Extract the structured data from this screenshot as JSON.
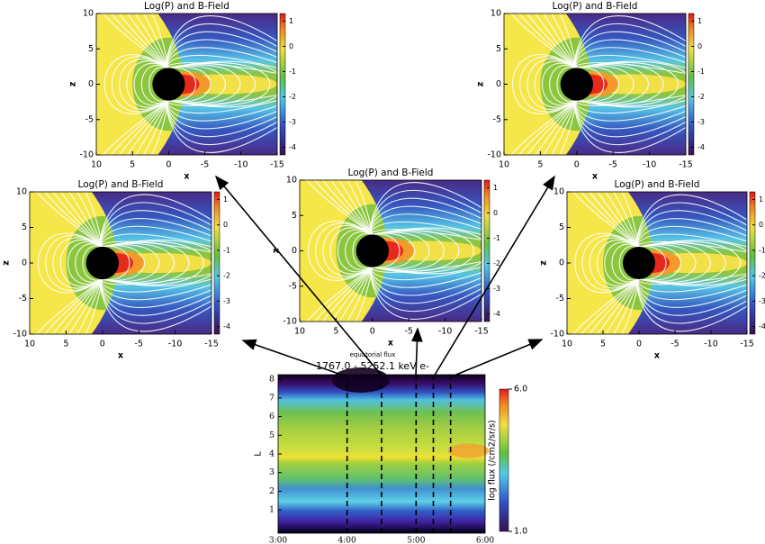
{
  "chart_data": [
    {
      "type": "field",
      "title": "Log(P) and B-Field",
      "xlabel": "x",
      "ylabel": "z",
      "xlim": [
        10,
        -15
      ],
      "ylim": [
        -10,
        10
      ],
      "xticks": [
        10,
        5,
        0,
        -5,
        -10,
        -15
      ],
      "yticks": [
        -10,
        -5,
        0,
        5,
        10
      ],
      "colorbar": {
        "lim": [
          -4.3,
          1.3
        ],
        "ticks": [
          -4,
          -3,
          -2,
          -1,
          0,
          1
        ]
      }
    },
    {
      "type": "field",
      "title": "Log(P) and B-Field",
      "xlabel": "x",
      "ylabel": "z",
      "xlim": [
        10,
        -15
      ],
      "ylim": [
        -10,
        10
      ],
      "xticks": [
        10,
        5,
        0,
        -5,
        -10,
        -15
      ],
      "yticks": [
        -10,
        -5,
        0,
        5,
        10
      ],
      "colorbar": {
        "lim": [
          -4.3,
          1.3
        ],
        "ticks": [
          -4,
          -3,
          -2,
          -1,
          0,
          1
        ]
      }
    },
    {
      "type": "field",
      "title": "Log(P) and B-Field",
      "xlabel": "x",
      "ylabel": "z",
      "xlim": [
        10,
        -15
      ],
      "ylim": [
        -10,
        10
      ],
      "xticks": [
        10,
        5,
        0,
        -5,
        -10,
        -15
      ],
      "yticks": [
        -10,
        -5,
        0,
        5,
        10
      ],
      "colorbar": {
        "lim": [
          -4.3,
          1.3
        ],
        "ticks": [
          -4,
          -3,
          -2,
          -1,
          0,
          1
        ]
      }
    },
    {
      "type": "field",
      "title": "Log(P) and B-Field",
      "xlabel": "x",
      "ylabel": "z",
      "xlim": [
        10,
        -15
      ],
      "ylim": [
        -10,
        10
      ],
      "xticks": [
        10,
        5,
        0,
        -5,
        -10,
        -15
      ],
      "yticks": [
        -10,
        -5,
        0,
        5,
        10
      ],
      "colorbar": {
        "lim": [
          -4.3,
          1.3
        ],
        "ticks": [
          -4,
          -3,
          -2,
          -1,
          0,
          1
        ]
      }
    },
    {
      "type": "field",
      "title": "Log(P) and B-Field",
      "xlabel": "x",
      "ylabel": "z",
      "xlim": [
        10,
        -15
      ],
      "ylim": [
        -10,
        10
      ],
      "xticks": [
        10,
        5,
        0,
        -5,
        -10,
        -15
      ],
      "yticks": [
        -10,
        -5,
        0,
        5,
        10
      ],
      "colorbar": {
        "lim": [
          -4.3,
          1.3
        ],
        "ticks": [
          -4,
          -3,
          -2,
          -1,
          0,
          1
        ]
      }
    },
    {
      "type": "heatmap",
      "title": "equatorial flux",
      "subtitle": "1767.0 - 5252.1 keV e-",
      "ylabel": "L",
      "xlim": [
        3,
        6
      ],
      "xticks": [
        {
          "value": 3,
          "label": "3:00"
        },
        {
          "value": 4,
          "label": "4:00"
        },
        {
          "value": 5,
          "label": "5:00"
        },
        {
          "value": 6,
          "label": "6:00"
        }
      ],
      "ylim": [
        -0.25,
        8.25
      ],
      "yticks": [
        1,
        2,
        3,
        4,
        5,
        6,
        7,
        8
      ],
      "colorbar": {
        "label": "log flux (/cm2/sr/s)",
        "lim": [
          1,
          6
        ],
        "ticks": [
          {
            "value": 1,
            "label": "1.0"
          },
          {
            "value": 6,
            "label": "6.0"
          }
        ]
      },
      "markers": [
        4,
        4.5,
        5,
        5.25,
        5.5
      ]
    }
  ]
}
